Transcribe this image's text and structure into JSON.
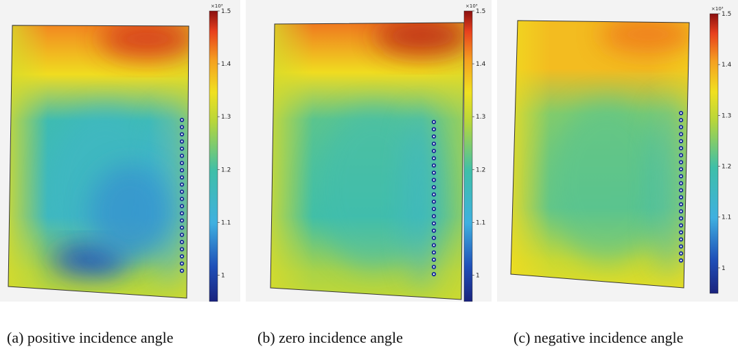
{
  "chart_data": [
    {
      "type": "heatmap",
      "caption": "(a) positive incidence angle",
      "colorbar": {
        "min": 0.95,
        "max": 1.5,
        "ticks": [
          "1",
          "1.1",
          "1.2",
          "1.3",
          "1.4",
          "1.5"
        ],
        "multiplier": "×10³"
      },
      "field": {
        "top": 1.42,
        "edge": 1.3,
        "core": 1.16,
        "low_spot": 1.02,
        "holes": 22
      }
    },
    {
      "type": "heatmap",
      "caption": "(b) zero incidence angle",
      "colorbar": {
        "min": 0.95,
        "max": 1.5,
        "ticks": [
          "1",
          "1.1",
          "1.2",
          "1.3",
          "1.4",
          "1.5"
        ],
        "multiplier": "×10³"
      },
      "field": {
        "top": 1.43,
        "edge": 1.3,
        "core": 1.2,
        "low_spot": null,
        "holes": 22
      }
    },
    {
      "type": "heatmap",
      "caption": "(c) negative incidence angle",
      "colorbar": {
        "min": 0.95,
        "max": 1.5,
        "ticks": [
          "1",
          "1.1",
          "1.2",
          "1.3",
          "1.4",
          "1.5"
        ],
        "multiplier": "×10³"
      },
      "field": {
        "top": 1.38,
        "edge": 1.33,
        "core": 1.23,
        "low_spot": null,
        "holes": 22
      }
    }
  ]
}
